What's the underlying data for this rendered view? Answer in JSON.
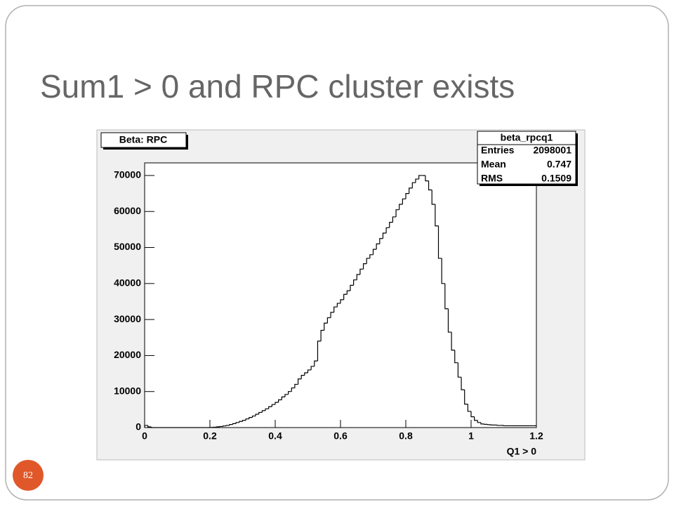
{
  "slide": {
    "title": "Sum1 > 0 and RPC cluster exists",
    "page_number": 82
  },
  "chart_data": {
    "type": "histogram",
    "title": "Beta: RPC",
    "x_label": "Q1 > 0",
    "color": "#000000",
    "stats": {
      "title": "beta_rpcq1",
      "rows": [
        [
          "Entries",
          "2098001"
        ],
        [
          "Mean",
          "0.747"
        ],
        [
          "RMS",
          "0.1509"
        ]
      ]
    },
    "bins": [
      0,
      0.01,
      0.02,
      0.03,
      0.04,
      0.05,
      0.06,
      0.07,
      0.08,
      0.09,
      0.1,
      0.11,
      0.12,
      0.13,
      0.14,
      0.15,
      0.16,
      0.17,
      0.18,
      0.19,
      0.2,
      0.21,
      0.22,
      0.23,
      0.24,
      0.25,
      0.26,
      0.27,
      0.28,
      0.29,
      0.3,
      0.31,
      0.32,
      0.33,
      0.34,
      0.35,
      0.36,
      0.37,
      0.38,
      0.39,
      0.4,
      0.41,
      0.42,
      0.43,
      0.44,
      0.45,
      0.46,
      0.47,
      0.48,
      0.49,
      0.5,
      0.51,
      0.52,
      0.53,
      0.54,
      0.55,
      0.56,
      0.57,
      0.58,
      0.59,
      0.6,
      0.61,
      0.62,
      0.63,
      0.64,
      0.65,
      0.66,
      0.67,
      0.68,
      0.69,
      0.7,
      0.71,
      0.72,
      0.73,
      0.74,
      0.75,
      0.76,
      0.77,
      0.78,
      0.79,
      0.8,
      0.81,
      0.82,
      0.83,
      0.84,
      0.85,
      0.86,
      0.87,
      0.88,
      0.89,
      0.9,
      0.91,
      0.92,
      0.93,
      0.94,
      0.95,
      0.96,
      0.97,
      0.98,
      0.99,
      1,
      1.01,
      1.02,
      1.03,
      1.04,
      1.05,
      1.06,
      1.07,
      1.08,
      1.09,
      1.1,
      1.11,
      1.12,
      1.13,
      1.14,
      1.15,
      1.16,
      1.17,
      1.18,
      1.19,
      1.2
    ],
    "values": [
      600,
      200,
      0,
      0,
      0,
      0,
      0,
      0,
      0,
      0,
      0,
      0,
      0,
      0,
      0,
      0,
      0,
      0,
      0,
      0,
      50,
      100,
      200,
      300,
      450,
      600,
      850,
      1100,
      1400,
      1700,
      2000,
      2400,
      2800,
      3200,
      3700,
      4200,
      4700,
      5200,
      5800,
      6400,
      7000,
      7700,
      8500,
      9200,
      10000,
      11000,
      12000,
      13500,
      14500,
      15200,
      16000,
      17000,
      18500,
      24000,
      27000,
      29000,
      30500,
      32000,
      33500,
      34500,
      35500,
      37000,
      38000,
      39500,
      41000,
      42500,
      44000,
      45500,
      47000,
      48000,
      49500,
      51000,
      52500,
      54000,
      55500,
      57000,
      58500,
      60500,
      62000,
      63500,
      65000,
      66500,
      68000,
      69000,
      70000,
      70000,
      68500,
      66000,
      62000,
      56000,
      47000,
      40000,
      33000,
      26500,
      21500,
      18000,
      14000,
      10500,
      6500,
      4500,
      3000,
      2000,
      1400,
      1000,
      900,
      800,
      700,
      700,
      600,
      600,
      500,
      500,
      500,
      500,
      500,
      500,
      500,
      500,
      500,
      500
    ],
    "xlim": [
      0,
      1.2
    ],
    "ylim": [
      0,
      73500
    ],
    "xticks": [
      0,
      0.2,
      0.4,
      0.6,
      0.8,
      1,
      1.2
    ],
    "yticks": [
      0,
      10000,
      20000,
      30000,
      40000,
      50000,
      60000,
      70000
    ]
  }
}
